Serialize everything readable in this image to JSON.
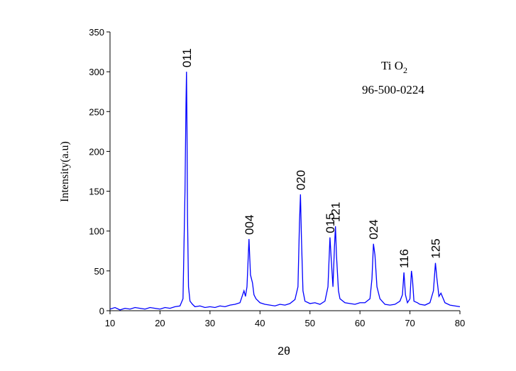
{
  "chart_data": {
    "type": "line",
    "x_label": "2θ",
    "y_label": "Intensity(a.u)",
    "xlim": [
      10,
      80
    ],
    "ylim": [
      0,
      350
    ],
    "xticks": [
      10,
      20,
      30,
      40,
      50,
      60,
      70,
      80
    ],
    "yticks": [
      0,
      50,
      100,
      150,
      200,
      250,
      300,
      350
    ],
    "grid": false,
    "series": [
      {
        "color": "#0000ff",
        "x": [
          10,
          11,
          12,
          13,
          14,
          15,
          16,
          17,
          18,
          19,
          20,
          21,
          22,
          23,
          24,
          24.6,
          25,
          25.2,
          25.3,
          25.4,
          25.5,
          25.7,
          26,
          26.5,
          27,
          28,
          29,
          30,
          31,
          32,
          33,
          34,
          35,
          36,
          36.8,
          37.1,
          37.4,
          37.8,
          38.1,
          38.5,
          38.8,
          39.2,
          40,
          41,
          42,
          43,
          44,
          45,
          46,
          47,
          47.6,
          47.9,
          48.1,
          48.3,
          48.6,
          49,
          50,
          51,
          52,
          53,
          53.6,
          54,
          54.3,
          54.6,
          54.9,
          55.1,
          55.3,
          55.7,
          56,
          57,
          58,
          59,
          60,
          61,
          62,
          62.4,
          62.7,
          63,
          63.4,
          64,
          65,
          66,
          67,
          68,
          68.5,
          68.8,
          69.1,
          69.5,
          70,
          70.3,
          70.5,
          70.8,
          71.5,
          72,
          73,
          74,
          74.7,
          75.1,
          75.4,
          75.8,
          76.2,
          77,
          78,
          79,
          80
        ],
        "values": [
          2,
          4,
          1,
          3,
          2,
          4,
          3,
          2,
          4,
          3,
          2,
          4,
          3,
          5,
          6,
          15,
          150,
          260,
          300,
          230,
          120,
          30,
          12,
          8,
          5,
          6,
          4,
          5,
          4,
          6,
          5,
          7,
          8,
          10,
          25,
          18,
          30,
          90,
          45,
          35,
          20,
          15,
          10,
          8,
          7,
          6,
          8,
          7,
          9,
          14,
          30,
          110,
          146,
          90,
          25,
          12,
          9,
          10,
          8,
          12,
          30,
          92,
          60,
          30,
          80,
          106,
          70,
          25,
          15,
          10,
          9,
          8,
          10,
          10,
          15,
          40,
          84,
          70,
          30,
          15,
          8,
          7,
          8,
          12,
          20,
          48,
          20,
          10,
          15,
          50,
          40,
          12,
          10,
          8,
          7,
          10,
          25,
          60,
          40,
          18,
          22,
          10,
          7,
          6,
          5
        ]
      }
    ],
    "annotations": [
      {
        "text": "011",
        "x": 25.3,
        "y": 300
      },
      {
        "text": "004",
        "x": 37.8,
        "y": 90
      },
      {
        "text": "020",
        "x": 48.1,
        "y": 146
      },
      {
        "text": "015",
        "x": 54,
        "y": 92
      },
      {
        "text": "121",
        "x": 55.1,
        "y": 106
      },
      {
        "text": "024",
        "x": 62.7,
        "y": 84
      },
      {
        "text": "116",
        "x": 68.8,
        "y": 48
      },
      {
        "text": "125",
        "x": 75.1,
        "y": 60
      }
    ],
    "legend_text": {
      "formula": "Ti O",
      "subscript": "2",
      "card": "96-500-0224"
    }
  }
}
